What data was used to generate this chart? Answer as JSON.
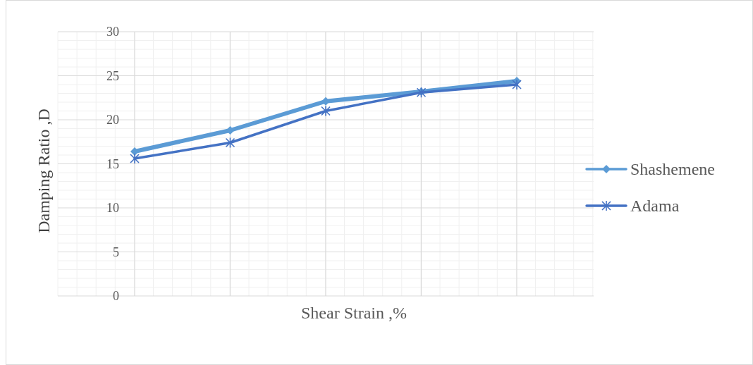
{
  "chart_data": {
    "type": "line",
    "xlabel": "Shear Strain ,%",
    "ylabel": "Damping Ratio ,D",
    "categories": [
      null,
      null,
      null,
      null,
      null
    ],
    "ylim": [
      0,
      30
    ],
    "yticks": [
      0,
      5,
      10,
      15,
      20,
      25,
      30
    ],
    "grid": true,
    "legend": "right",
    "series": [
      {
        "name": "Shashemene",
        "color": "#5b9bd5",
        "marker": "diamond",
        "values": [
          16.4,
          18.8,
          22.1,
          23.2,
          24.4
        ]
      },
      {
        "name": "Adama",
        "color": "#4472c4",
        "marker": "cross",
        "values": [
          15.6,
          17.4,
          21.0,
          23.1,
          24.0
        ]
      }
    ]
  }
}
